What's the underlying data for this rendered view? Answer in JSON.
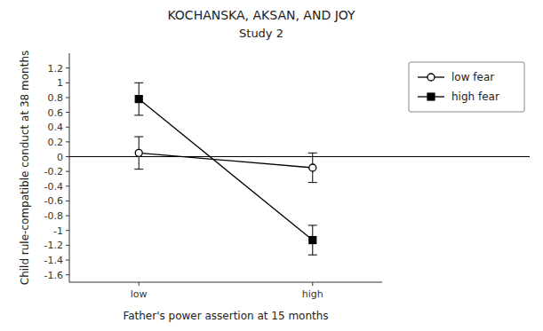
{
  "chart_data": {
    "type": "line",
    "title": "KOCHANSKA, AKSAN, AND JOY",
    "subtitle": "Study 2",
    "x_label": "Father's power assertion at 15 months",
    "y_label": "Child rule-compatible conduct at 38 months",
    "categories": [
      "low",
      "high"
    ],
    "series": [
      {
        "name": "low fear",
        "color": "#000000",
        "marker": "open-circle",
        "line_style": "solid",
        "values": [
          0.05,
          -0.15
        ],
        "errors": [
          0.22,
          0.2
        ]
      },
      {
        "name": "high fear",
        "color": "#000000",
        "marker": "square",
        "line_style": "solid",
        "values": [
          0.78,
          -1.13
        ],
        "errors": [
          0.22,
          0.2
        ]
      }
    ],
    "hline": 0,
    "ylim": [
      -1.7,
      1.4
    ],
    "yticks": [
      -1.6,
      -1.4,
      -1.2,
      -1,
      -0.8,
      -0.6,
      -0.4,
      -0.2,
      0,
      0.2,
      0.4,
      0.6,
      0.8,
      1,
      1.2
    ],
    "grid": false,
    "legend": "right"
  }
}
